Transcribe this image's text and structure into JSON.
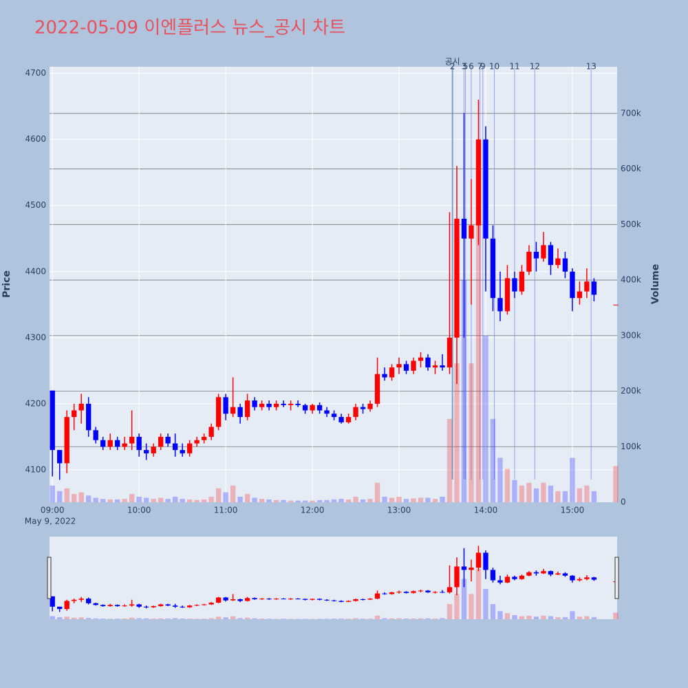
{
  "chart_data": {
    "type": "candlestick",
    "title": "2022-05-09 이엔플러스 뉴스_공시 차트",
    "x": [
      "2022-05-09 09:00",
      "2022-05-09 09:05",
      "2022-05-09 09:10",
      "2022-05-09 09:15",
      "2022-05-09 09:20",
      "2022-05-09 09:25",
      "2022-05-09 09:30",
      "2022-05-09 09:35",
      "2022-05-09 09:40",
      "2022-05-09 09:45",
      "2022-05-09 09:50",
      "2022-05-09 09:55",
      "2022-05-09 10:00",
      "2022-05-09 10:05",
      "2022-05-09 10:10",
      "2022-05-09 10:15",
      "2022-05-09 10:20",
      "2022-05-09 10:25",
      "2022-05-09 10:30",
      "2022-05-09 10:35",
      "2022-05-09 10:40",
      "2022-05-09 10:45",
      "2022-05-09 10:50",
      "2022-05-09 10:55",
      "2022-05-09 11:00",
      "2022-05-09 11:05",
      "2022-05-09 11:10",
      "2022-05-09 11:15",
      "2022-05-09 11:20",
      "2022-05-09 11:25",
      "2022-05-09 11:30",
      "2022-05-09 11:35",
      "2022-05-09 11:40",
      "2022-05-09 11:45",
      "2022-05-09 11:50",
      "2022-05-09 11:55",
      "2022-05-09 12:00",
      "2022-05-09 12:05",
      "2022-05-09 12:10",
      "2022-05-09 12:15",
      "2022-05-09 12:20",
      "2022-05-09 12:25",
      "2022-05-09 12:30",
      "2022-05-09 12:35",
      "2022-05-09 12:40",
      "2022-05-09 12:45",
      "2022-05-09 12:50",
      "2022-05-09 12:55",
      "2022-05-09 13:00",
      "2022-05-09 13:05",
      "2022-05-09 13:10",
      "2022-05-09 13:15",
      "2022-05-09 13:20",
      "2022-05-09 13:25",
      "2022-05-09 13:30",
      "2022-05-09 13:35",
      "2022-05-09 13:40",
      "2022-05-09 13:45",
      "2022-05-09 13:50",
      "2022-05-09 13:55",
      "2022-05-09 14:00",
      "2022-05-09 14:05",
      "2022-05-09 14:10",
      "2022-05-09 14:15",
      "2022-05-09 14:20",
      "2022-05-09 14:25",
      "2022-05-09 14:30",
      "2022-05-09 14:35",
      "2022-05-09 14:40",
      "2022-05-09 14:45",
      "2022-05-09 14:50",
      "2022-05-09 14:55",
      "2022-05-09 15:00",
      "2022-05-09 15:05",
      "2022-05-09 15:10",
      "2022-05-09 15:15",
      "2022-05-09 15:30"
    ],
    "open": [
      4220,
      4130,
      4110,
      4180,
      4190,
      4200,
      4160,
      4145,
      4135,
      4145,
      4135,
      4140,
      4150,
      4130,
      4125,
      4135,
      4150,
      4140,
      4130,
      4125,
      4140,
      4145,
      4150,
      4165,
      4210,
      4185,
      4195,
      4180,
      4205,
      4195,
      4200,
      4195,
      4200,
      4198,
      4200,
      4198,
      4190,
      4198,
      4190,
      4185,
      4180,
      4172,
      4180,
      4195,
      4192,
      4200,
      4245,
      4240,
      4255,
      4260,
      4250,
      4265,
      4270,
      4255,
      4258,
      4255,
      4300,
      4480,
      4450,
      4470,
      4600,
      4450,
      4360,
      4340,
      4390,
      4370,
      4400,
      4430,
      4420,
      4440,
      4410,
      4420,
      4400,
      4360,
      4370,
      4385,
      4350
    ],
    "high": [
      4220,
      4130,
      4190,
      4200,
      4215,
      4210,
      4165,
      4150,
      4155,
      4150,
      4150,
      4190,
      4155,
      4140,
      4140,
      4155,
      4155,
      4155,
      4140,
      4145,
      4150,
      4155,
      4170,
      4215,
      4215,
      4240,
      4200,
      4215,
      4210,
      4205,
      4205,
      4205,
      4205,
      4205,
      4205,
      4200,
      4200,
      4202,
      4195,
      4190,
      4185,
      4185,
      4200,
      4200,
      4205,
      4270,
      4255,
      4260,
      4270,
      4265,
      4270,
      4278,
      4275,
      4265,
      4275,
      4490,
      4560,
      4640,
      4540,
      4660,
      4620,
      4470,
      4400,
      4410,
      4400,
      4410,
      4440,
      4445,
      4460,
      4445,
      4435,
      4430,
      4405,
      4385,
      4405,
      4390,
      4350
    ],
    "low": [
      4090,
      4085,
      4095,
      4160,
      4170,
      4150,
      4140,
      4130,
      4130,
      4130,
      4130,
      4130,
      4120,
      4115,
      4120,
      4130,
      4135,
      4120,
      4120,
      4120,
      4135,
      4140,
      4145,
      4160,
      4175,
      4180,
      4170,
      4175,
      4190,
      4190,
      4190,
      4190,
      4195,
      4190,
      4195,
      4185,
      4185,
      4185,
      4180,
      4175,
      4170,
      4170,
      4175,
      4185,
      4188,
      4195,
      4235,
      4235,
      4245,
      4245,
      4245,
      4255,
      4250,
      4245,
      4250,
      4245,
      4230,
      4300,
      4350,
      4440,
      4370,
      4340,
      4325,
      4335,
      4360,
      4365,
      4395,
      4400,
      4415,
      4395,
      4405,
      4390,
      4340,
      4350,
      4360,
      4355,
      4350
    ],
    "close": [
      4130,
      4110,
      4180,
      4190,
      4200,
      4160,
      4145,
      4135,
      4145,
      4135,
      4140,
      4150,
      4130,
      4125,
      4135,
      4150,
      4140,
      4130,
      4125,
      4140,
      4145,
      4150,
      4165,
      4210,
      4185,
      4195,
      4180,
      4205,
      4195,
      4200,
      4195,
      4200,
      4198,
      4200,
      4198,
      4190,
      4198,
      4190,
      4185,
      4180,
      4172,
      4180,
      4195,
      4192,
      4200,
      4245,
      4240,
      4255,
      4260,
      4250,
      4265,
      4270,
      4255,
      4258,
      4255,
      4300,
      4480,
      4450,
      4470,
      4600,
      4450,
      4360,
      4340,
      4390,
      4370,
      4400,
      4430,
      4420,
      4440,
      4410,
      4420,
      4400,
      4360,
      4370,
      4385,
      4365,
      4350
    ],
    "volume": [
      30000,
      20000,
      25000,
      15000,
      18000,
      12000,
      8000,
      6000,
      5000,
      5000,
      6000,
      15000,
      10000,
      8000,
      6000,
      8000,
      6000,
      10000,
      6000,
      5000,
      4000,
      5000,
      10000,
      25000,
      18000,
      30000,
      10000,
      15000,
      8000,
      6000,
      5000,
      4000,
      4000,
      3000,
      3000,
      3000,
      3000,
      4000,
      4000,
      5000,
      6000,
      5000,
      10000,
      5000,
      6000,
      35000,
      10000,
      8000,
      10000,
      6000,
      7000,
      8000,
      8000,
      6000,
      10000,
      150000,
      250000,
      400000,
      250000,
      500000,
      300000,
      150000,
      80000,
      60000,
      40000,
      30000,
      35000,
      25000,
      35000,
      30000,
      20000,
      20000,
      80000,
      25000,
      30000,
      20000,
      65000
    ],
    "increasing_color": "#ff0000",
    "decreasing_color": "#0000ff",
    "ylabel": "Price",
    "y2label": "Volume",
    "ylim": [
      4051,
      4710
    ],
    "yticks": [
      4100,
      4200,
      4300,
      4400,
      4500,
      4600,
      4700
    ],
    "y2lim": [
      0,
      784000
    ],
    "y2ticks": [
      0,
      {
        "value": 100000,
        "label": "100k"
      },
      {
        "value": 200000,
        "label": "200k"
      },
      {
        "value": 300000,
        "label": "300k"
      },
      {
        "value": 400000,
        "label": "400k"
      },
      {
        "value": 500000,
        "label": "500k"
      },
      {
        "value": 600000,
        "label": "600k"
      },
      {
        "value": 700000,
        "label": "700k"
      }
    ],
    "xlim": [
      "2022-05-09 08:58",
      "2022-05-09 15:31"
    ],
    "xticks": [
      {
        "value": "2022-05-09 09:00",
        "label": "09:00"
      },
      {
        "value": "2022-05-09 10:00",
        "label": "10:00"
      },
      {
        "value": "2022-05-09 11:00",
        "label": "11:00"
      },
      {
        "value": "2022-05-09 12:00",
        "label": "12:00"
      },
      {
        "value": "2022-05-09 13:00",
        "label": "13:00"
      },
      {
        "value": "2022-05-09 14:00",
        "label": "14:00"
      },
      {
        "value": "2022-05-09 15:00",
        "label": "15:00"
      }
    ],
    "x_date_label": "May 9, 2022",
    "events": [
      {
        "x": "2022-05-09 13:37",
        "label": "공시"
      },
      {
        "x": "2022-05-09 13:37",
        "label": "2"
      },
      {
        "x": "2022-05-09 13:45",
        "label": "3"
      },
      {
        "x": "2022-05-09 13:46",
        "label": "5"
      },
      {
        "x": "2022-05-09 13:50",
        "label": "6"
      },
      {
        "x": "2022-05-09 13:56",
        "label": "7"
      },
      {
        "x": "2022-05-09 13:58",
        "label": "9"
      },
      {
        "x": "2022-05-09 14:06",
        "label": "10"
      },
      {
        "x": "2022-05-09 14:20",
        "label": "11"
      },
      {
        "x": "2022-05-09 14:34",
        "label": "12"
      },
      {
        "x": "2022-05-09 15:13",
        "label": "13"
      }
    ],
    "rangeslider": true
  }
}
